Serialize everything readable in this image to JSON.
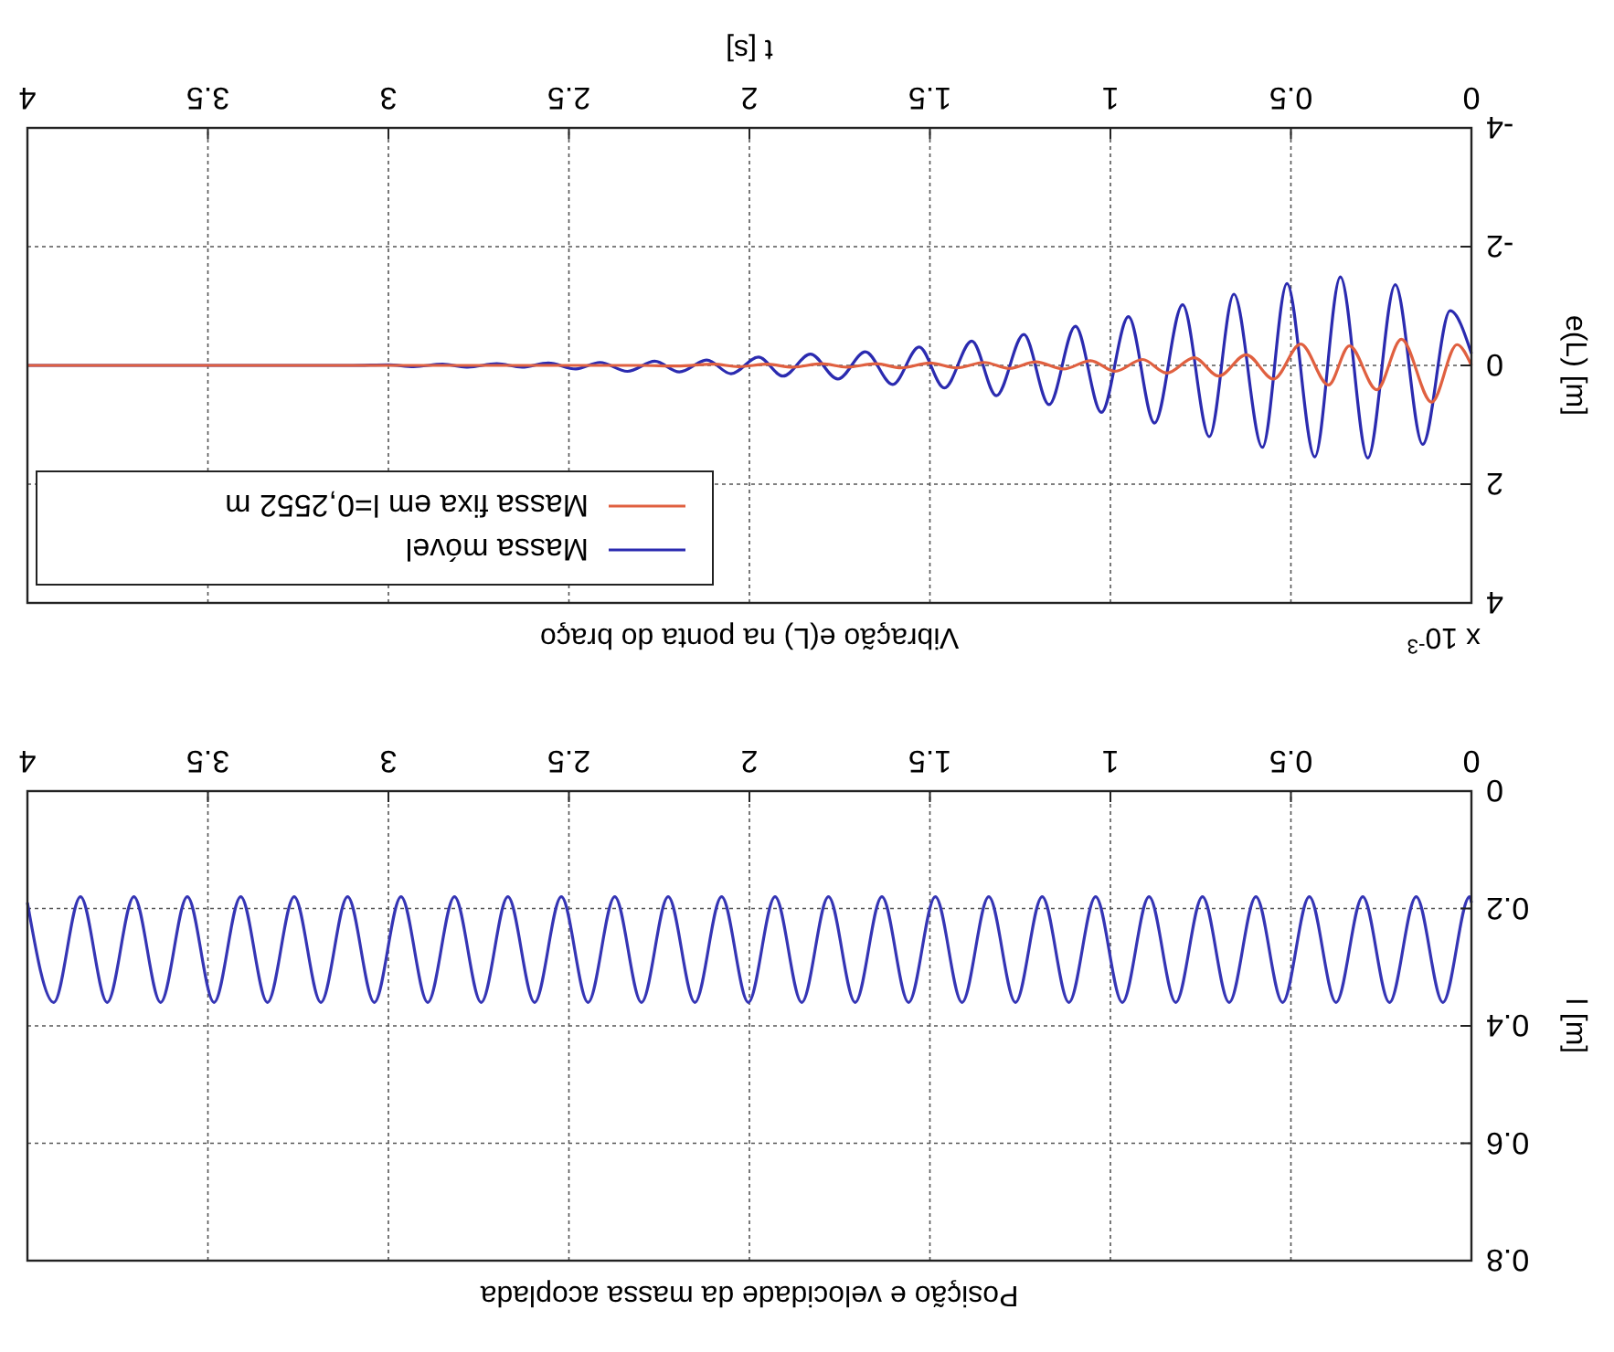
{
  "chart_data": [
    {
      "type": "line",
      "title": "Posição e velocidade da massa acoplada",
      "ylabel": "l [m]",
      "xlim": [
        4,
        0
      ],
      "ylim": [
        0.8,
        0
      ],
      "xticks": [
        0,
        0.5,
        1,
        1.5,
        2,
        2.5,
        3,
        3.5,
        4
      ],
      "yticks": [
        0,
        0.2,
        0.4,
        0.6,
        0.8
      ],
      "grid": true,
      "line_style": "solid",
      "series": [
        {
          "color": "#3535b5",
          "x": [
            0,
            0.005,
            0.079,
            0.153,
            0.227,
            0.301,
            0.375,
            0.449,
            0.523,
            0.597,
            0.671,
            0.745,
            0.819,
            0.893,
            0.967,
            1.041,
            1.115,
            1.189,
            1.263,
            1.337,
            1.411,
            1.485,
            1.559,
            1.633,
            1.707,
            1.781,
            1.855,
            1.929,
            2.003,
            2.077,
            2.151,
            2.225,
            2.299,
            2.373,
            2.447,
            2.521,
            2.595,
            2.669,
            2.743,
            2.817,
            2.891,
            2.965,
            3.039,
            3.113,
            3.187,
            3.261,
            3.335,
            3.409,
            3.483,
            3.557,
            3.631,
            3.705,
            3.779,
            3.853,
            3.927,
            4
          ],
          "values": [
            0.19,
            0.18,
            0.36,
            0.18,
            0.36,
            0.18,
            0.36,
            0.18,
            0.36,
            0.18,
            0.36,
            0.18,
            0.36,
            0.18,
            0.36,
            0.18,
            0.36,
            0.18,
            0.36,
            0.18,
            0.36,
            0.18,
            0.36,
            0.18,
            0.36,
            0.18,
            0.36,
            0.18,
            0.36,
            0.18,
            0.36,
            0.18,
            0.36,
            0.18,
            0.36,
            0.18,
            0.36,
            0.18,
            0.36,
            0.18,
            0.36,
            0.18,
            0.36,
            0.18,
            0.36,
            0.18,
            0.36,
            0.18,
            0.36,
            0.18,
            0.36,
            0.18,
            0.36,
            0.18,
            0.36,
            0.19
          ]
        }
      ]
    },
    {
      "type": "line",
      "title": "Vibração e(L) na ponta do braço",
      "xlabel": "t [s]",
      "ylabel": "e(L) [m]",
      "annotations": [
        "x 10$^{-3}$"
      ],
      "xlim": [
        4,
        0
      ],
      "ylim": [
        4,
        -4
      ],
      "xticks": [
        0,
        0.5,
        1,
        1.5,
        2,
        2.5,
        3,
        3.5,
        4
      ],
      "yticks": [
        -4,
        -2,
        0,
        2,
        4
      ],
      "grid": true,
      "legend": "bottom left",
      "line_style": "solid",
      "series": [
        {
          "name": "Massa móvel",
          "color": "#2b2bb0",
          "x": [
            0,
            0.059,
            0.135,
            0.211,
            0.287,
            0.363,
            0.434,
            0.511,
            0.579,
            0.658,
            0.726,
            0.8,
            0.878,
            0.95,
            1.025,
            1.097,
            1.17,
            1.24,
            1.316,
            1.384,
            1.46,
            1.53,
            1.603,
            1.679,
            1.755,
            1.831,
            1.907,
            1.975,
            2.051,
            2.118,
            2.194,
            2.262,
            2.338,
            2.414,
            2.481,
            2.557,
            2.63,
            2.7,
            2.78,
            2.85,
            2.93,
            3.0,
            3.1,
            4
          ],
          "values": [
            -0.2,
            -0.92,
            1.33,
            -1.36,
            1.56,
            -1.49,
            1.54,
            -1.38,
            1.38,
            -1.2,
            1.2,
            -1.02,
            0.97,
            -0.82,
            0.79,
            -0.66,
            0.66,
            -0.52,
            0.51,
            -0.41,
            0.38,
            -0.31,
            0.32,
            -0.23,
            0.23,
            -0.19,
            0.18,
            -0.14,
            0.14,
            -0.09,
            0.11,
            -0.07,
            0.1,
            -0.05,
            0.06,
            -0.04,
            0.03,
            -0.03,
            0.03,
            -0.02,
            0.02,
            -0.01,
            0,
            0
          ]
        },
        {
          "name": "Massa fixa em l=0,2552 m",
          "color": "#e06040",
          "x": [
            0,
            0.04,
            0.11,
            0.194,
            0.262,
            0.338,
            0.396,
            0.473,
            0.548,
            0.624,
            0.7,
            0.768,
            0.844,
            0.911,
            0.987,
            1.055,
            1.13,
            1.207,
            1.28,
            1.35,
            1.426,
            1.5,
            1.58,
            1.65,
            1.73,
            1.8,
            1.88,
            1.95,
            2.03,
            2.1,
            2.2,
            2.3,
            2.5,
            4
          ],
          "values": [
            0,
            -0.35,
            0.62,
            -0.44,
            0.41,
            -0.33,
            0.33,
            -0.36,
            0.23,
            -0.18,
            0.18,
            -0.13,
            0.13,
            -0.1,
            0.1,
            -0.08,
            0.06,
            -0.06,
            0.05,
            -0.05,
            0.04,
            -0.04,
            0.04,
            -0.03,
            0.03,
            -0.03,
            0.03,
            -0.02,
            0.02,
            -0.02,
            0.01,
            0,
            0,
            0
          ]
        }
      ]
    }
  ]
}
